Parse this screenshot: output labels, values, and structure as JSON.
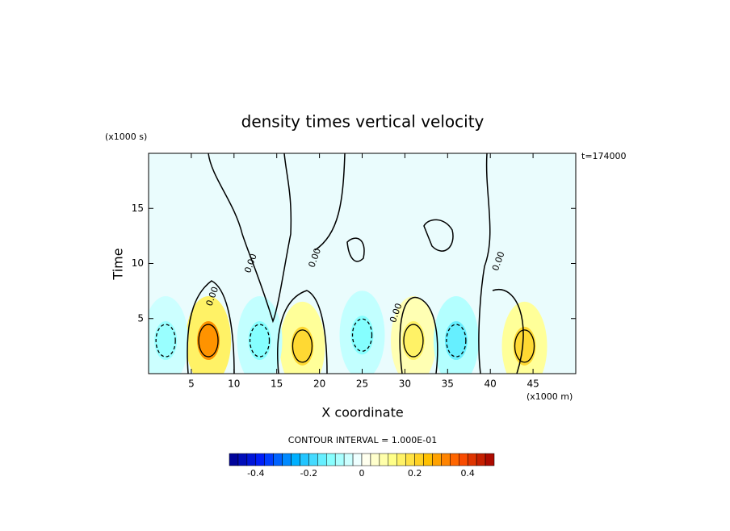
{
  "chart_data": {
    "type": "contour",
    "title": "density times vertical velocity",
    "x_label": "X coordinate",
    "x_unit": "(x1000 m)",
    "y_label": "Time",
    "y_unit": "(x1000 s)",
    "time_label": "t=174000",
    "contour_interval": "CONTOUR INTERVAL = 1.000E-01",
    "xlim": [
      0,
      50
    ],
    "xticks": [
      5,
      10,
      15,
      20,
      25,
      30,
      35,
      40,
      45
    ],
    "ylim": [
      0,
      20
    ],
    "yticks": [
      5,
      10,
      15
    ],
    "cells": [
      {
        "x": 7,
        "y": 3,
        "value": 0.3
      },
      {
        "x": 18,
        "y": 2.5,
        "value": 0.2
      },
      {
        "x": 31,
        "y": 3,
        "value": 0.15
      },
      {
        "x": 44,
        "y": 2.5,
        "value": 0.2
      },
      {
        "x": 2,
        "y": 3,
        "value": -0.1
      },
      {
        "x": 13,
        "y": 3,
        "value": -0.12
      },
      {
        "x": 25,
        "y": 3.5,
        "value": -0.12
      },
      {
        "x": 36,
        "y": 3,
        "value": -0.15
      }
    ],
    "contour_labels": [
      {
        "text": "0.00",
        "x": 12,
        "y": 10
      },
      {
        "text": "0.00",
        "x": 19.5,
        "y": 10.5
      },
      {
        "text": "0.00",
        "x": 7.5,
        "y": 7
      },
      {
        "text": "0.00",
        "x": 29,
        "y": 5.5
      },
      {
        "text": "0.00",
        "x": 41,
        "y": 10.2
      }
    ],
    "colorbar": {
      "lim": [
        -0.5,
        0.5
      ],
      "ticks": [
        -0.4,
        -0.2,
        0,
        0.2,
        0.4
      ],
      "nlevels": 30,
      "colors": [
        "#00008b",
        "#0020ff",
        "#00b0ff",
        "#80ffff",
        "#ffffff",
        "#ffff80",
        "#ffc000",
        "#ff5000",
        "#a00000"
      ]
    }
  }
}
